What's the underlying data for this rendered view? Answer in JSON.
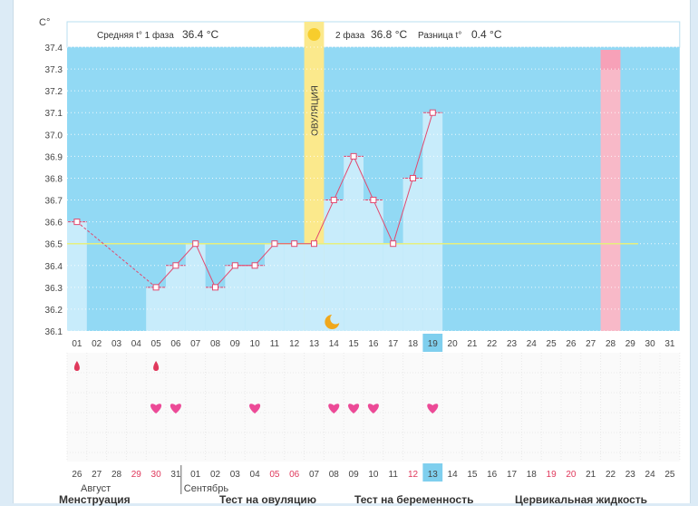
{
  "chart_data": {
    "type": "line",
    "ylabel": "C°",
    "ylim": [
      36.1,
      37.4
    ],
    "yticks": [
      36.1,
      36.2,
      36.3,
      36.4,
      36.5,
      36.6,
      36.7,
      36.8,
      36.9,
      37.0,
      37.1,
      37.2,
      37.3,
      37.4
    ],
    "days": [
      "01",
      "02",
      "03",
      "04",
      "05",
      "06",
      "07",
      "08",
      "09",
      "10",
      "11",
      "12",
      "13",
      "14",
      "15",
      "16",
      "17",
      "18",
      "19",
      "20",
      "21",
      "22",
      "23",
      "24",
      "25",
      "26",
      "27",
      "28",
      "29",
      "30",
      "31"
    ],
    "temperatures": [
      36.6,
      null,
      null,
      null,
      36.3,
      36.4,
      36.5,
      36.3,
      36.4,
      36.4,
      36.5,
      36.5,
      36.5,
      36.7,
      36.9,
      36.7,
      36.5,
      36.8,
      37.1,
      null,
      null,
      null,
      null,
      null,
      null,
      null,
      null,
      null,
      null,
      null,
      null
    ],
    "coverline": 36.5,
    "ovulation_day": "13",
    "ovulation_label": "ОВУЛЯЦИЯ",
    "today_day": "19",
    "highlight_day": "28",
    "phase1_label": "Средняя t° 1 фаза",
    "phase1_value": "36.4 °C",
    "phase2_label": "2 фаза",
    "phase2_value": "36.8 °C",
    "diff_label": "Разница t°",
    "diff_value": "0.4 °C",
    "phase2_days": [
      "01",
      "02",
      "03",
      "04",
      "05",
      "06",
      "07",
      "08",
      "09",
      "10",
      "11",
      "12",
      "13",
      "14",
      "15",
      "16",
      "17",
      "18"
    ],
    "menstruation_days": [
      "01",
      "05"
    ],
    "heart_days": [
      "05",
      "06",
      "10",
      "14",
      "15",
      "16",
      "19"
    ],
    "moon_day": "14",
    "dates": [
      "26",
      "27",
      "28",
      "29",
      "30",
      "31",
      "01",
      "02",
      "03",
      "04",
      "05",
      "06",
      "07",
      "08",
      "09",
      "10",
      "11",
      "12",
      "13",
      "14",
      "15",
      "16",
      "17",
      "18",
      "19",
      "20",
      "21",
      "22",
      "23",
      "24",
      "25"
    ],
    "date_red": [
      "29",
      "30",
      "05",
      "06",
      "12",
      "19",
      "20"
    ],
    "month_left": "Август",
    "month_right": "Сентябрь",
    "footer": [
      "Менструация",
      "Тест на овуляцию",
      "Тест на беременность",
      "Цервикальная жидкость"
    ],
    "colors": {
      "sky": "#92d9f4",
      "bar": "#c8ecfb",
      "line": "#e2496f",
      "coverline": "#e6ef7e",
      "ovulation": "#fbe98c",
      "today": "#7fcfee",
      "pink": "#f8b9c8",
      "red": "#e0395c",
      "heart": "#ec4a97"
    }
  }
}
